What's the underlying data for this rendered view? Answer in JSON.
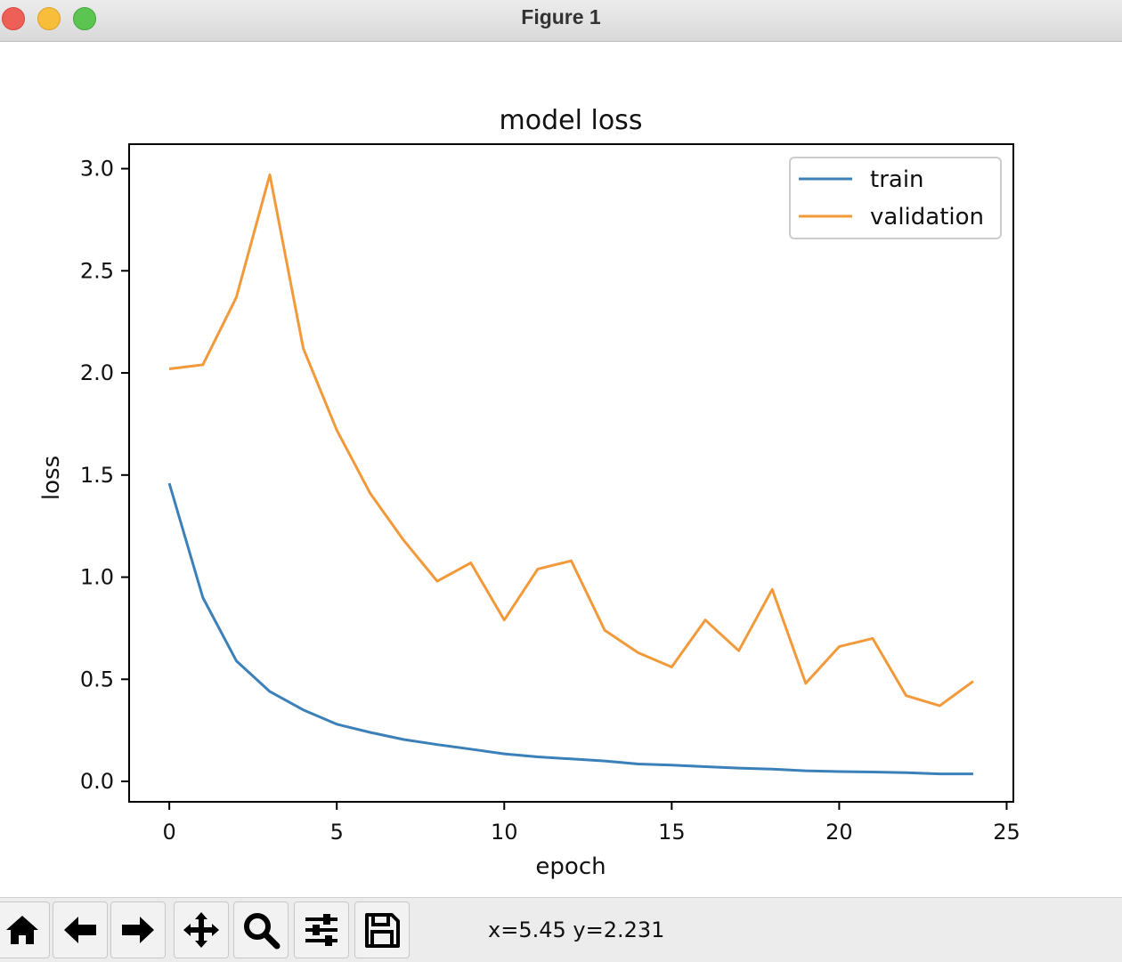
{
  "window": {
    "title": "Figure 1"
  },
  "toolbar": {
    "buttons": [
      {
        "name": "home-button",
        "icon": "home-icon"
      },
      {
        "name": "back-button",
        "icon": "arrow-left-icon"
      },
      {
        "name": "forward-button",
        "icon": "arrow-right-icon"
      },
      {
        "name": "pan-button",
        "icon": "move-icon"
      },
      {
        "name": "zoom-button",
        "icon": "magnifier-icon"
      },
      {
        "name": "configure-subplots-button",
        "icon": "sliders-icon"
      },
      {
        "name": "save-button",
        "icon": "floppy-disk-icon"
      }
    ],
    "coords": "x=5.45 y=2.231"
  },
  "chart_data": {
    "type": "line",
    "title": "model loss",
    "xlabel": "epoch",
    "ylabel": "loss",
    "xlim": [
      -1.2,
      25.2
    ],
    "ylim": [
      -0.1,
      3.12
    ],
    "xticks": [
      0,
      5,
      10,
      15,
      20,
      25
    ],
    "xtick_labels": [
      "0",
      "5",
      "10",
      "15",
      "20",
      "25"
    ],
    "yticks": [
      0.0,
      0.5,
      1.0,
      1.5,
      2.0,
      2.5,
      3.0
    ],
    "ytick_labels": [
      "0.0",
      "0.5",
      "1.0",
      "1.5",
      "2.0",
      "2.5",
      "3.0"
    ],
    "grid": false,
    "legend": "upper-right",
    "x": [
      0,
      1,
      2,
      3,
      4,
      5,
      6,
      7,
      8,
      9,
      10,
      11,
      12,
      13,
      14,
      15,
      16,
      17,
      18,
      19,
      20,
      21,
      22,
      23,
      24
    ],
    "series": [
      {
        "name": "train",
        "color": "#3b80b8",
        "values": [
          1.46,
          0.9,
          0.59,
          0.44,
          0.35,
          0.28,
          0.24,
          0.205,
          0.18,
          0.158,
          0.135,
          0.12,
          0.11,
          0.1,
          0.085,
          0.08,
          0.072,
          0.065,
          0.06,
          0.052,
          0.048,
          0.046,
          0.043,
          0.037,
          0.037
        ]
      },
      {
        "name": "validation",
        "color": "#f29a3a",
        "values": [
          2.02,
          2.04,
          2.37,
          2.97,
          2.12,
          1.72,
          1.41,
          1.18,
          0.98,
          1.07,
          0.79,
          1.04,
          1.08,
          0.74,
          0.63,
          0.56,
          0.79,
          0.64,
          0.94,
          0.48,
          0.66,
          0.7,
          0.42,
          0.37,
          0.49
        ]
      }
    ]
  }
}
